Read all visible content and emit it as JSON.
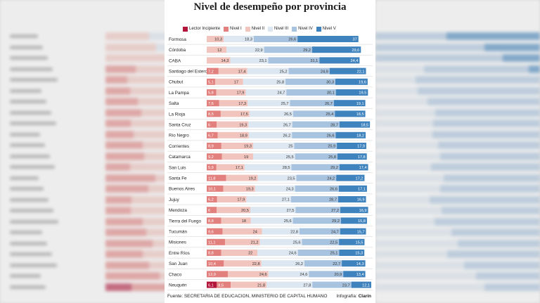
{
  "header": {
    "title": "Nivel de desempeño por provincia"
  },
  "legend": [
    {
      "label": "Lector Incipiente",
      "color": "#b3153a"
    },
    {
      "label": "Nivel I",
      "color": "#e2807e"
    },
    {
      "label": "Nivel II",
      "color": "#f2c4be"
    },
    {
      "label": "Nivel III",
      "color": "#dde7f1"
    },
    {
      "label": "Nivel IV",
      "color": "#a8c3df"
    },
    {
      "label": "Nivel V",
      "color": "#3f83be"
    }
  ],
  "footer": {
    "source": "Fuente: SECRETARIA DE EDUCACION, MINISTERIO DE CAPITAL HUMANO",
    "credit_prefix": "Infografía:",
    "credit_name": "Clarín"
  },
  "chart_data": {
    "type": "bar",
    "stacked": true,
    "orientation": "horizontal",
    "title": "Nivel de desempeño por provincia",
    "categories": [
      "Formosa",
      "Córdoba",
      "CABA",
      "Santiago del Estero",
      "Chubut",
      "La Pampa",
      "Salta",
      "La Rioja",
      "Santa Cruz",
      "Río Negro",
      "Corrientes",
      "Catamarca",
      "San Luis",
      "Santa Fe",
      "Buenos Aires",
      "Jujuy",
      "Mendoza",
      "Tierra del Fuego",
      "Tucumán",
      "Misiones",
      "Entre Ríos",
      "San Juan",
      "Chaco",
      "Neuquén"
    ],
    "series": [
      {
        "name": "Lector Incipiente",
        "values": [
          null,
          null,
          null,
          null,
          null,
          null,
          null,
          null,
          null,
          null,
          null,
          null,
          null,
          null,
          null,
          null,
          null,
          null,
          null,
          null,
          null,
          null,
          null,
          6.1
        ]
      },
      {
        "name": "Nivel I",
        "values": [
          null,
          null,
          null,
          7.2,
          5.1,
          5.8,
          7.6,
          8.5,
          6,
          6.7,
          8.9,
          9.2,
          5.9,
          11.8,
          10.1,
          6.2,
          6,
          8.8,
          9.6,
          11.1,
          8.8,
          10.4,
          12.9,
          8.5
        ]
      },
      {
        "name": "Nivel II",
        "values": [
          10.3,
          12,
          14.3,
          17.4,
          17,
          17.9,
          17.3,
          17.5,
          19.3,
          18.9,
          19.3,
          19,
          17.1,
          19.2,
          19.3,
          17.9,
          20.5,
          18,
          24,
          21.2,
          22,
          22.8,
          24.6,
          21.8
        ]
      },
      {
        "name": "Nivel III",
        "values": [
          18.3,
          22.9,
          23.1,
          25.2,
          25.8,
          24.7,
          25.7,
          26.5,
          26.7,
          26.2,
          25,
          25.5,
          28.5,
          23.5,
          24.3,
          27.1,
          27.5,
          25.6,
          22.8,
          25.6,
          24.6,
          26.2,
          24.6,
          27.8
        ]
      },
      {
        "name": "Nivel IV",
        "values": [
          26.6,
          29.2,
          31.1,
          24.9,
          30.3,
          30.1,
          26.7,
          25.4,
          28.7,
          26.6,
          25.9,
          25.8,
          29.2,
          24.2,
          26.6,
          28.7,
          27.2,
          29.2,
          24.7,
          22.5,
          25.1,
          22.7,
          20.9,
          23.7
        ]
      },
      {
        "name": "Nivel V",
        "values": [
          37,
          29.6,
          24.4,
          22.1,
          19.6,
          19.5,
          19.1,
          18.5,
          18.5,
          18.2,
          17.9,
          17.8,
          17.4,
          17.2,
          17.1,
          16.9,
          16.9,
          15.8,
          15.7,
          15.5,
          15.3,
          14.3,
          13.4,
          12.1
        ]
      }
    ],
    "xlim": [
      0,
      100
    ]
  }
}
